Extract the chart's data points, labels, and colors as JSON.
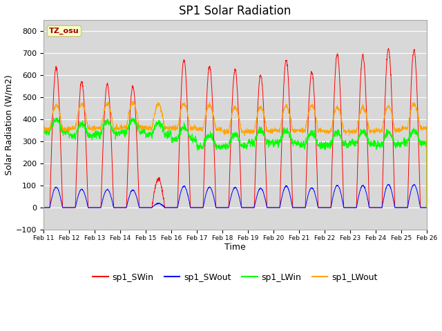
{
  "title": "SP1 Solar Radiation",
  "xlabel": "Time",
  "ylabel": "Solar Radiation (W/m2)",
  "ylim": [
    -100,
    850
  ],
  "yticks": [
    -100,
    0,
    100,
    200,
    300,
    400,
    500,
    600,
    700,
    800
  ],
  "date_labels": [
    "Feb 11",
    "Feb 12",
    "Feb 13",
    "Feb 14",
    "Feb 15",
    "Feb 16",
    "Feb 17",
    "Feb 18",
    "Feb 19",
    "Feb 20",
    "Feb 21",
    "Feb 22",
    "Feb 23",
    "Feb 24",
    "Feb 25",
    "Feb 26"
  ],
  "n_days": 15,
  "colors": {
    "sp1_SWin": "#ff0000",
    "sp1_SWout": "#0000ff",
    "sp1_LWin": "#00ff00",
    "sp1_LWout": "#ffa500"
  },
  "legend_labels": [
    "sp1_SWin",
    "sp1_SWout",
    "sp1_LWin",
    "sp1_LWout"
  ],
  "annotation_text": "TZ_osu",
  "annotation_color": "#990000",
  "annotation_bg": "#ffffcc",
  "annotation_border": "#cccc88",
  "fig_bg_color": "#ffffff",
  "plot_bg": "#d8d8d8",
  "grid_color": "#ffffff",
  "title_fontsize": 12,
  "axis_fontsize": 9,
  "tick_fontsize": 8,
  "legend_fontsize": 9
}
